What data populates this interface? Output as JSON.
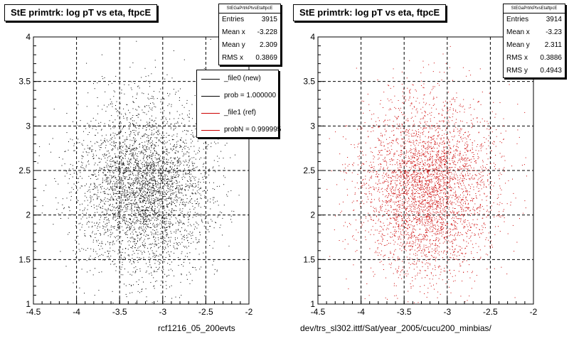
{
  "chart_data": [
    {
      "type": "scatter",
      "title": "StE primtrk: log pT vs eta, ftpcE",
      "xlabel": "rcf1216_05_200evts",
      "xlim": [
        -4.5,
        -2
      ],
      "ylim": [
        1,
        4
      ],
      "x_ticks": [
        "-4.5",
        "-4",
        "-3.5",
        "-3",
        "-2.5",
        "-2"
      ],
      "y_ticks": [
        "1",
        "1.5",
        "2",
        "2.5",
        "3",
        "3.5",
        "4"
      ],
      "grid": true,
      "marker_color": "#000000",
      "distribution": {
        "x_mean": -3.228,
        "y_mean": 2.309,
        "x_rms": 0.3869,
        "count": 3915
      },
      "stats": {
        "header": "StEGaPrtrkPtvsEtaftpcE",
        "rows": [
          {
            "label": "Entries",
            "value": "3915"
          },
          {
            "label": "Mean x",
            "value": "-3.228"
          },
          {
            "label": "Mean y",
            "value": "2.309"
          },
          {
            "label": "RMS x",
            "value": "0.3869"
          }
        ]
      },
      "legend": [
        {
          "label": "_file0 (new)",
          "color": "#000000"
        },
        {
          "label": "prob = 1.000000",
          "color": "#000000"
        },
        {
          "label": "_file1 (ref)",
          "color": "#cc0000"
        },
        {
          "label": "probN = 0.999995",
          "color": "#cc0000"
        }
      ]
    },
    {
      "type": "scatter",
      "title": "StE primtrk: log pT vs eta, ftpcE",
      "xlabel": "dev/trs_sl302.ittf/Sat/year_2005/cucu200_minbias/",
      "xlim": [
        -4.5,
        -2
      ],
      "ylim": [
        1,
        4
      ],
      "x_ticks": [
        "-4.5",
        "-4",
        "-3.5",
        "-3",
        "-2.5",
        "-2"
      ],
      "y_ticks": [
        "1",
        "1.5",
        "2",
        "2.5",
        "3",
        "3.5",
        "4"
      ],
      "grid": true,
      "marker_color": "#cc0000",
      "distribution": {
        "x_mean": -3.23,
        "y_mean": 2.311,
        "x_rms": 0.3886,
        "y_rms": 0.4943,
        "count": 3914
      },
      "stats": {
        "header": "StEGaPrtrkPtvsEtaftpcE",
        "rows": [
          {
            "label": "Entries",
            "value": "3914"
          },
          {
            "label": "Mean x",
            "value": "-3.23"
          },
          {
            "label": "Mean y",
            "value": "2.311"
          },
          {
            "label": "RMS x",
            "value": "0.3886"
          },
          {
            "label": "RMS y",
            "value": "0.4943"
          }
        ]
      }
    }
  ]
}
